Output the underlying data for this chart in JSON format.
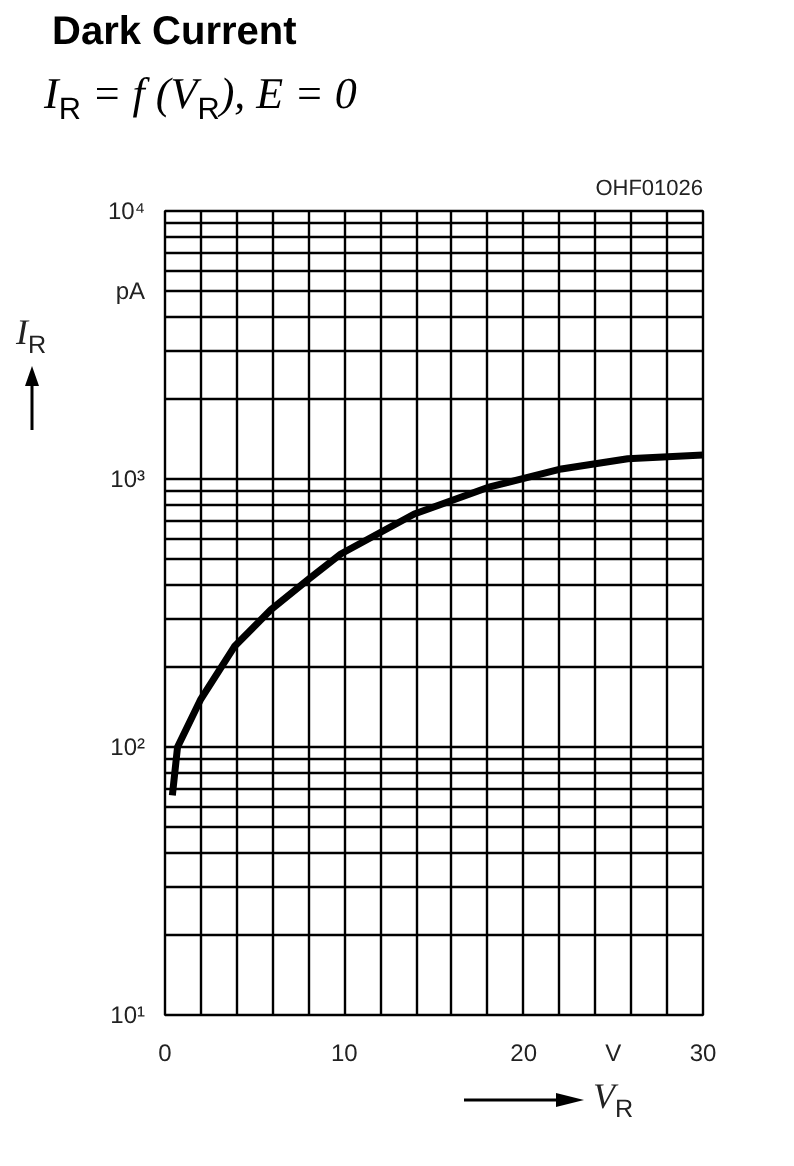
{
  "chart_data": {
    "type": "line",
    "title": "Dark Current",
    "subtitle": "I$_{R}$ = f (V$_{R}$), E = 0",
    "xlabel": "V$_{R}$",
    "ylabel": "I$_{R}$",
    "annotations": [
      "OHF01026",
      "V",
      "pA"
    ],
    "x": [
      0.41,
      0.7,
      2.0,
      3.87,
      5.9,
      7.95,
      9.8,
      13.9,
      18.0,
      22.1,
      25.8,
      30
    ],
    "series": [
      {
        "color": "#000000",
        "values": [
          66,
          100,
          151,
          237,
          325,
          420,
          525,
          740,
          930,
          1090,
          1190,
          1230
        ]
      }
    ],
    "log": "y",
    "grid": true,
    "marker": "none",
    "line_style": "solid",
    "xlim": [
      0,
      30
    ],
    "ylim": [
      10,
      10000
    ],
    "xticks": [
      0,
      {
        "value": 2,
        "label": null
      },
      {
        "value": 4,
        "label": null
      },
      {
        "value": 6,
        "label": null
      },
      {
        "value": 8,
        "label": null
      },
      10,
      {
        "value": 12,
        "label": null
      },
      {
        "value": 14,
        "label": null
      },
      {
        "value": 16,
        "label": null
      },
      {
        "value": 18,
        "label": null
      },
      20,
      {
        "value": 22,
        "label": null
      },
      {
        "value": 24,
        "label": null
      },
      {
        "value": 26,
        "label": null
      },
      {
        "value": 28,
        "label": null
      },
      30
    ],
    "yticks": [
      {
        "value": 10,
        "label": "10¹"
      },
      {
        "value": 20,
        "label": null
      },
      {
        "value": 30,
        "label": null
      },
      {
        "value": 40,
        "label": null
      },
      {
        "value": 50,
        "label": null
      },
      {
        "value": 60,
        "label": null
      },
      {
        "value": 70,
        "label": null
      },
      {
        "value": 80,
        "label": null
      },
      {
        "value": 90,
        "label": null
      },
      {
        "value": 100,
        "label": "10²"
      },
      {
        "value": 200,
        "label": null
      },
      {
        "value": 300,
        "label": null
      },
      {
        "value": 400,
        "label": null
      },
      {
        "value": 500,
        "label": null
      },
      {
        "value": 600,
        "label": null
      },
      {
        "value": 700,
        "label": null
      },
      {
        "value": 800,
        "label": null
      },
      {
        "value": 900,
        "label": null
      },
      {
        "value": 1000,
        "label": "10³"
      },
      {
        "value": 2000,
        "label": null
      },
      {
        "value": 3000,
        "label": null
      },
      {
        "value": 4000,
        "label": null
      },
      {
        "value": 5000,
        "label": null
      },
      {
        "value": 6000,
        "label": null
      },
      {
        "value": 7000,
        "label": null
      },
      {
        "value": 8000,
        "label": null
      },
      {
        "value": 9000,
        "label": null
      },
      {
        "value": 10000,
        "label": "10⁴"
      }
    ]
  }
}
